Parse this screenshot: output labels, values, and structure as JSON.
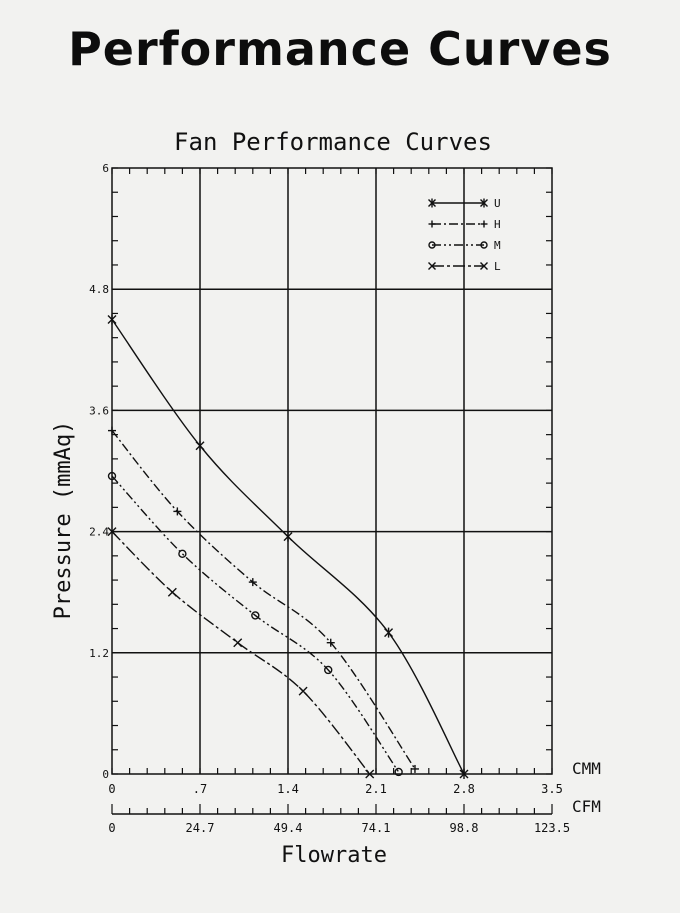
{
  "page_title": "Performance Curves",
  "chart_data": {
    "type": "line",
    "title": "Fan Performance Curves",
    "xlabel": "Flowrate",
    "ylabel": "Pressure (mmAq)",
    "xlim": [
      0,
      3.5
    ],
    "ylim": [
      0,
      6
    ],
    "x_ticks": [
      "0",
      ".7",
      "1.4",
      "2.1",
      "2.8",
      "3.5"
    ],
    "y_ticks": [
      "0",
      "1.2",
      "2.4",
      "3.6",
      "4.8",
      "6"
    ],
    "x_unit": "CMM",
    "cfm_axis": {
      "unit": "CFM",
      "ticks": [
        "0",
        "24.7",
        "49.4",
        "74.1",
        "98.8",
        "123.5"
      ],
      "max": 123.5
    },
    "grid": true,
    "legend_position": "top-right",
    "series": [
      {
        "name": "U",
        "marker": "asterisk",
        "dash": "solid",
        "x": [
          0,
          0.7,
          1.4,
          2.2,
          2.8
        ],
        "y": [
          4.5,
          3.25,
          2.35,
          1.4,
          0
        ]
      },
      {
        "name": "H",
        "marker": "plus",
        "dash": "dashdot",
        "x": [
          0,
          0.52,
          1.12,
          1.74,
          2.41
        ],
        "y": [
          3.4,
          2.6,
          1.9,
          1.3,
          0.05
        ]
      },
      {
        "name": "M",
        "marker": "circle",
        "dash": "dashdotdot",
        "x": [
          0,
          0.56,
          1.14,
          1.72,
          2.28
        ],
        "y": [
          2.95,
          2.18,
          1.57,
          1.03,
          0.02
        ]
      },
      {
        "name": "L",
        "marker": "x",
        "dash": "dashdotlong",
        "x": [
          0,
          0.48,
          1.0,
          1.52,
          2.05
        ],
        "y": [
          2.4,
          1.8,
          1.3,
          0.82,
          0
        ]
      }
    ]
  }
}
